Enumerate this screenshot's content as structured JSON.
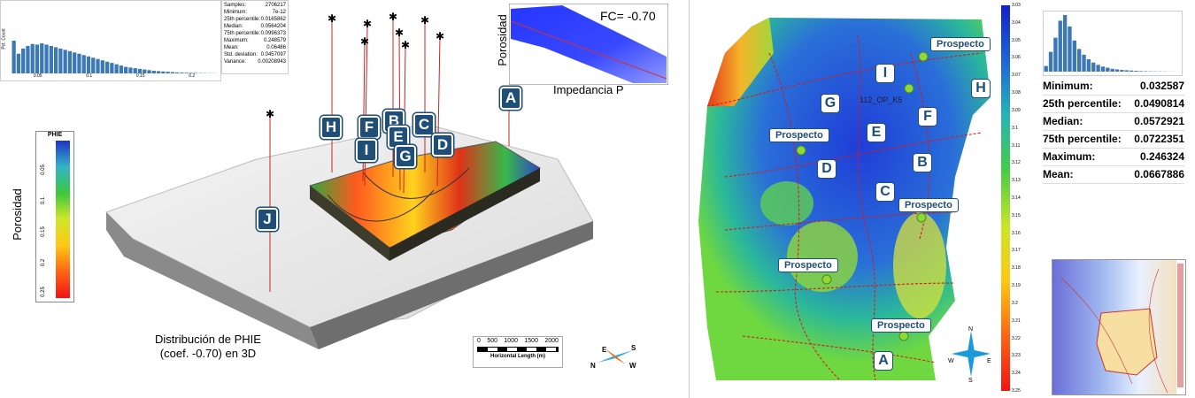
{
  "top_left_histogram": {
    "ylabel": "Pct. Count",
    "xticks": [
      "0.05",
      "0.1",
      "0.15",
      "0.2"
    ],
    "bars": [
      0.5,
      0.3,
      0.38,
      0.42,
      0.45,
      0.44,
      0.46,
      0.44,
      0.42,
      0.4,
      0.38,
      0.36,
      0.34,
      0.32,
      0.3,
      0.28,
      0.26,
      0.24,
      0.22,
      0.2,
      0.18,
      0.16,
      0.14,
      0.12,
      0.1,
      0.09,
      0.08,
      0.07,
      0.06,
      0.05,
      0.04,
      0.035,
      0.03,
      0.025,
      0.02,
      0.015,
      0.012,
      0.01,
      0.008,
      0.006,
      0.005,
      0.004,
      0.003,
      0.002
    ]
  },
  "top_left_stats": [
    {
      "label": "Samples:",
      "value": "2706217"
    },
    {
      "label": "Minimum:",
      "value": "7e-12"
    },
    {
      "label": "25th percentile:",
      "value": "0.0165862"
    },
    {
      "label": "Median:",
      "value": "0.0564204"
    },
    {
      "label": "75th percentile:",
      "value": "0.0996373"
    },
    {
      "label": "Maximum:",
      "value": "0.248579"
    },
    {
      "label": "Mean:",
      "value": "0.06486"
    },
    {
      "label": "Std. deviation:",
      "value": "0.0457097"
    },
    {
      "label": "Variance:",
      "value": "0.00208943"
    }
  ],
  "crossplot": {
    "ylabel": "Porosidad",
    "xlabel": "Impedancia P",
    "annotation": "FC= -0.70"
  },
  "view3d": {
    "legend_title": "PHIE",
    "legend_axis_label": "Porosidad",
    "legend_ticks": [
      "0.05",
      "0.1",
      "0.15",
      "0.2",
      "0.25"
    ],
    "caption_line1": "Distribución de PHIE",
    "caption_line2": "(coef. -0.70) en  3D",
    "scale_ticks": [
      "0",
      "500",
      "1000",
      "1500",
      "2000"
    ],
    "scale_title": "Horizontal Length (m)",
    "compass": {
      "e": "E",
      "s": "S",
      "n": "N",
      "w": "W"
    },
    "wells": [
      "A",
      "B",
      "C",
      "D",
      "E",
      "F",
      "G",
      "H",
      "I",
      "J"
    ]
  },
  "map": {
    "wells": [
      "I",
      "G",
      "E",
      "F",
      "H",
      "D",
      "B",
      "C",
      "A"
    ],
    "prospecto_label": "Prospecto",
    "center_label": "112_OP_K5",
    "compass": {
      "n": "N",
      "e": "E",
      "s": "S",
      "w": "W"
    },
    "colorbar_ticks": [
      "3.03",
      "3.04",
      "3.05",
      "3.06",
      "3.07",
      "3.08",
      "3.09",
      "3.1",
      "3.11",
      "3.12",
      "3.13",
      "3.14",
      "3.15",
      "3.16",
      "3.17",
      "3.18",
      "3.19",
      "3.2",
      "3.21",
      "3.22",
      "3.23",
      "3.24",
      "3.25"
    ]
  },
  "right_histogram": {
    "bars": [
      0.1,
      0.35,
      0.6,
      0.9,
      1.0,
      0.8,
      0.55,
      0.4,
      0.3,
      0.22,
      0.16,
      0.12,
      0.09,
      0.07,
      0.05,
      0.04,
      0.03,
      0.025,
      0.02,
      0.015,
      0.01,
      0.008,
      0.006,
      0.005,
      0.004,
      0.003,
      0.002,
      0.002
    ]
  },
  "right_stats": [
    {
      "label": "Minimum:",
      "value": "0.032587"
    },
    {
      "label": "25th percentile:",
      "value": "0.0490814"
    },
    {
      "label": "Median:",
      "value": "0.0572921"
    },
    {
      "label": "75th percentile:",
      "value": "0.0722351"
    },
    {
      "label": "Maximum:",
      "value": "0.246324"
    },
    {
      "label": "Mean:",
      "value": "0.0667886"
    }
  ]
}
